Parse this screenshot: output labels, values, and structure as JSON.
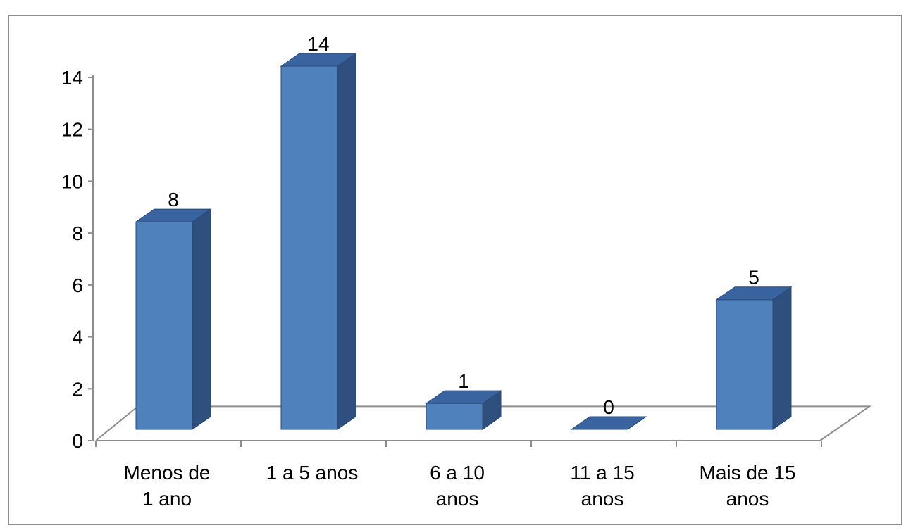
{
  "chart_data": {
    "type": "bar",
    "title": "",
    "xlabel": "",
    "ylabel": "",
    "categories": [
      [
        "Menos de",
        "1 ano"
      ],
      [
        "1 a 5 anos"
      ],
      [
        "6 a 10",
        "anos"
      ],
      [
        "11 a 15",
        "anos"
      ],
      [
        "Mais de 15",
        "anos"
      ]
    ],
    "values": [
      8,
      14,
      1,
      0,
      5
    ],
    "data_labels": [
      "8",
      "14",
      "1",
      "0",
      "5"
    ],
    "yticks": [
      "0",
      "2",
      "4",
      "6",
      "8",
      "10",
      "12",
      "14"
    ],
    "ylim": [
      0,
      14
    ],
    "grid": false,
    "legend": "none",
    "three_d": true,
    "colors": {
      "bar_front": "#4f81bd",
      "bar_side": "#2f4f7f",
      "bar_top": "#3a64a0",
      "bar_outline": "#2a4a78",
      "axis": "#8c8c8c",
      "frame_border": "#8c8c8c"
    }
  }
}
